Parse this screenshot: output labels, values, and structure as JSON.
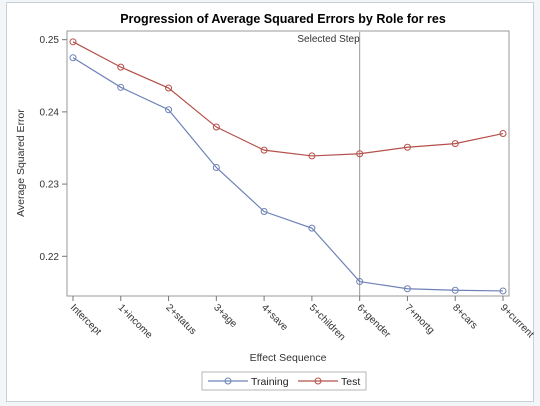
{
  "chart_data": {
    "type": "line",
    "title": "Progression of Average Squared Errors by Role for res",
    "xlabel": "Effect Sequence",
    "ylabel": "Average Squared Error",
    "categories": [
      "Intercept",
      "1+income",
      "2+status",
      "3+age",
      "4+save",
      "5+children",
      "6+gender",
      "7+mortg",
      "8+cars",
      "9+current"
    ],
    "ylim": [
      0.2145,
      0.2512
    ],
    "yticks": [
      "0.22",
      "0.23",
      "0.24",
      "0.25"
    ],
    "grid": false,
    "legend_position": "bottom",
    "annotation": {
      "text": "Selected Step",
      "category": "6+gender"
    },
    "series": [
      {
        "name": "Training",
        "color": "#6e82b7",
        "values": [
          0.2475,
          0.2434,
          0.2403,
          0.2323,
          0.2262,
          0.2239,
          0.2165,
          0.2155,
          0.2153,
          0.2152
        ]
      },
      {
        "name": "Test",
        "color": "#b5504a",
        "values": [
          0.2497,
          0.2462,
          0.2433,
          0.2379,
          0.2347,
          0.2339,
          0.2342,
          0.2351,
          0.2356,
          0.237
        ]
      }
    ]
  }
}
